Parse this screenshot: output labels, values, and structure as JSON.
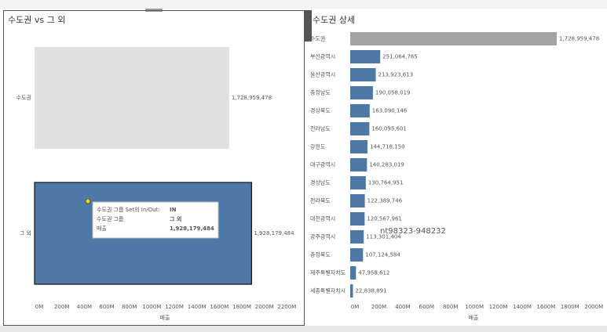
{
  "chart_data": [
    {
      "type": "barh",
      "title": "수도권 vs 그 외",
      "categories": [
        "수도권",
        "그 외"
      ],
      "values": [
        1728959478,
        1928179484
      ],
      "value_labels": [
        "1,728,959,478",
        "1,928,179,484"
      ],
      "colors": [
        "#e0e0e0",
        "#4e79a7"
      ],
      "xlabel": "매출",
      "xlim": [
        0,
        2400000000
      ],
      "xticks": [
        {
          "value": 0,
          "label": "0M"
        },
        {
          "value": 200000000,
          "label": "200M"
        },
        {
          "value": 400000000,
          "label": "400M"
        },
        {
          "value": 600000000,
          "label": "600M"
        },
        {
          "value": 800000000,
          "label": "800M"
        },
        {
          "value": 1000000000,
          "label": "1000M"
        },
        {
          "value": 1200000000,
          "label": "1200M"
        },
        {
          "value": 1400000000,
          "label": "1400M"
        },
        {
          "value": 1600000000,
          "label": "1600M"
        },
        {
          "value": 1800000000,
          "label": "1800M"
        },
        {
          "value": 2000000000,
          "label": "2000M"
        },
        {
          "value": 2200000000,
          "label": "2200M"
        }
      ],
      "tooltip": [
        [
          "수도권 그룹 Set의 In/Out:",
          "IN"
        ],
        [
          "수도권 그룹",
          "그 외"
        ],
        [
          "매출",
          "1,928,179,484"
        ]
      ]
    },
    {
      "type": "barh",
      "title": "수도권 상세",
      "categories": [
        "수도권",
        "부산광역시",
        "울산광역시",
        "충청남도",
        "경상북도",
        "전라남도",
        "강원도",
        "대구광역시",
        "경상남도",
        "전라북도",
        "대전광역시",
        "광주광역시",
        "충청북도",
        "제주특별자치도",
        "세종특별자치시"
      ],
      "values": [
        1728959478,
        251064785,
        213923613,
        190058019,
        163090146,
        160095601,
        144718150,
        140283019,
        130764951,
        122389746,
        120567961,
        113301404,
        107124584,
        47958612,
        22838891
      ],
      "value_labels": [
        "1,728,959,478",
        "251,064,785",
        "213,923,613",
        "190,058,019",
        "163,090,146",
        "160,095,601",
        "144,718,150",
        "140,283,019",
        "130,764,951",
        "122,389,746",
        "120,567,961",
        "113,301,404",
        "107,124,584",
        "47,958,612",
        "22,838,891"
      ],
      "colors": [
        "#a3a3a3",
        "#4e79a7",
        "#4e79a7",
        "#4e79a7",
        "#4e79a7",
        "#4e79a7",
        "#4e79a7",
        "#4e79a7",
        "#4e79a7",
        "#4e79a7",
        "#4e79a7",
        "#4e79a7",
        "#4e79a7",
        "#4e79a7",
        "#4e79a7"
      ],
      "xlabel": "매출",
      "xlim": [
        0,
        2150000000
      ],
      "xticks": [
        {
          "value": 0,
          "label": "0M"
        },
        {
          "value": 200000000,
          "label": "200M"
        },
        {
          "value": 400000000,
          "label": "400M"
        },
        {
          "value": 600000000,
          "label": "600M"
        },
        {
          "value": 800000000,
          "label": "800M"
        },
        {
          "value": 1000000000,
          "label": "1000M"
        },
        {
          "value": 1200000000,
          "label": "1200M"
        },
        {
          "value": 1400000000,
          "label": "1400M"
        },
        {
          "value": 1600000000,
          "label": "1600M"
        },
        {
          "value": 1800000000,
          "label": "1800M"
        },
        {
          "value": 2000000000,
          "label": "2000M"
        }
      ],
      "annotation": "nt98323-948232"
    }
  ]
}
